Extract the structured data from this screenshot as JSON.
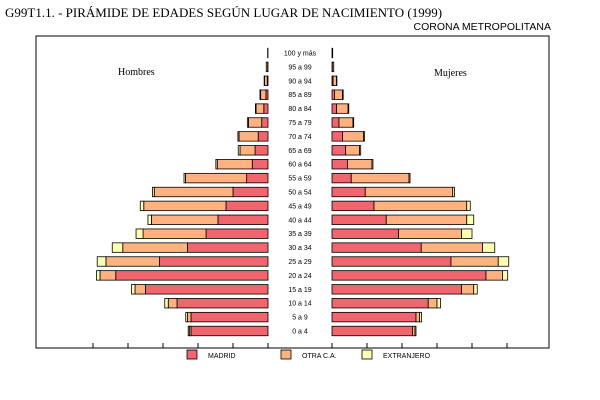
{
  "header": {
    "title": "G99T1.1. - PIRÁMIDE DE EDADES SEGÚN LUGAR DE NACIMIENTO (1999)",
    "subtitle": "CORONA METROPOLITANA"
  },
  "chart_data": {
    "type": "bar",
    "orientation": "horizontal-pyramid",
    "categories": [
      "100 y más",
      "95 a 99",
      "90 a 94",
      "85 a 89",
      "80 a 84",
      "75 a 79",
      "70 a 74",
      "65 a 69",
      "60 a 64",
      "55 a 59",
      "50 a 54",
      "45 a 49",
      "40 a 44",
      "35 a 39",
      "30 a 34",
      "25 a 29",
      "20 a 24",
      "15 a 19",
      "10 a 14",
      "5 a 9",
      "0 a 4"
    ],
    "sides": [
      {
        "name": "Hombres",
        "stacks": [
          {
            "name": "MADRID",
            "values": [
              0,
              0.1,
              0.2,
              0.6,
              1.2,
              1.8,
              2.8,
              3.7,
              4.5,
              6.1,
              10.0,
              12.0,
              14.3,
              17.7,
              23.0,
              31.0,
              43.5,
              35.0,
              26.0,
              22.0,
              22.0
            ]
          },
          {
            "name": "OTRA C.A.",
            "values": [
              0.1,
              0.4,
              0.8,
              1.5,
              2.2,
              3.8,
              5.5,
              4.3,
              10.0,
              17.5,
              22.5,
              23.5,
              19.0,
              18.0,
              18.5,
              15.3,
              4.5,
              3.0,
              2.5,
              1.0,
              0.5
            ]
          },
          {
            "name": "EXTRANJERO",
            "values": [
              0,
              0,
              0.1,
              0.2,
              0.2,
              0.3,
              0.3,
              0.5,
              0.4,
              0.4,
              0.5,
              1.0,
              1.0,
              2.0,
              3.0,
              2.5,
              1.0,
              1.0,
              1.0,
              0.5,
              0.3
            ]
          }
        ]
      },
      {
        "name": "Mujeres",
        "stacks": [
          {
            "name": "MADRID",
            "values": [
              0,
              0.1,
              0.3,
              0.7,
              1.3,
              2.0,
              3.0,
              3.9,
              4.4,
              5.5,
              9.5,
              12.0,
              15.5,
              19.0,
              25.5,
              34.0,
              44.0,
              37.0,
              27.5,
              24.0,
              23.0
            ]
          },
          {
            "name": "OTRA C.A.",
            "values": [
              0.2,
              0.4,
              1.0,
              2.3,
              3.3,
              4.0,
              6.0,
              4.0,
              7.0,
              16.5,
              25.0,
              26.5,
              23.0,
              18.0,
              17.5,
              13.5,
              4.7,
              3.5,
              2.5,
              1.0,
              0.7
            ]
          },
          {
            "name": "EXTRANJERO",
            "values": [
              0,
              0,
              0.1,
              0.2,
              0.2,
              0.2,
              0.3,
              0.3,
              0.3,
              0.3,
              0.5,
              1.0,
              2.0,
              3.0,
              3.5,
              3.0,
              1.5,
              1.0,
              1.0,
              0.6,
              0.3
            ]
          }
        ]
      }
    ],
    "legend": [
      "MADRID",
      "OTRA C.A.",
      "EXTRANJERO"
    ],
    "legend_position": "bottom",
    "colors": {
      "MADRID": "#f0656e",
      "OTRA C.A.": "#ffb27f",
      "EXTRANJERO": "#ffffb4"
    },
    "xlim": [
      0,
      50
    ],
    "grid": false
  }
}
